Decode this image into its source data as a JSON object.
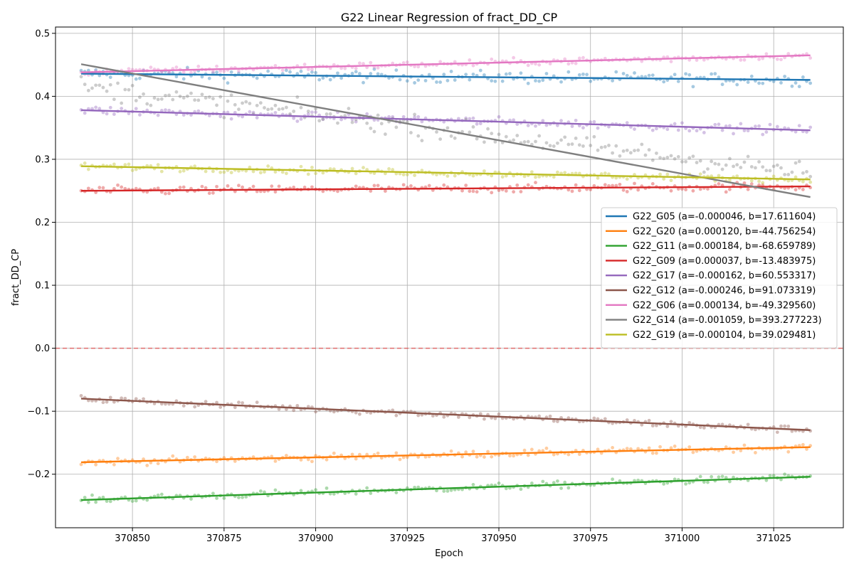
{
  "chart_data": {
    "type": "scatter",
    "title": "G22 Linear Regression of fract_DD_CP",
    "xlabel": "Epoch",
    "ylabel": "fract_DD_CP",
    "xlim": [
      370829,
      371044
    ],
    "ylim": [
      -0.285,
      0.51
    ],
    "xticks": [
      370850,
      370875,
      370900,
      370925,
      370950,
      370975,
      371000,
      371025
    ],
    "yticks": [
      -0.2,
      -0.1,
      0.0,
      0.1,
      0.2,
      0.3,
      0.4,
      0.5
    ],
    "grid": true,
    "legend_position": "center-right",
    "reference_line": {
      "y": 0.0,
      "color": "#e06060",
      "style": "dashed"
    },
    "fit_range": [
      370836,
      371035
    ],
    "series": [
      {
        "name": "G22_G05 (a=-0.000046, b=17.611604)",
        "a": -4.6e-05,
        "y_start": 0.436,
        "y_end": 0.426,
        "color": "#1f77b4",
        "noise": 0.007
      },
      {
        "name": "G22_G20 (a=0.000120, b=-44.756254)",
        "a": 0.00012,
        "y_start": -0.181,
        "y_end": -0.157,
        "color": "#ff7f0e",
        "noise": 0.004
      },
      {
        "name": "G22_G11 (a=0.000184, b=-68.659789)",
        "a": 0.000184,
        "y_start": -0.241,
        "y_end": -0.204,
        "color": "#2ca02c",
        "noise": 0.004
      },
      {
        "name": "G22_G09 (a=0.000037, b=-13.483975)",
        "a": 3.7e-05,
        "y_start": 0.25,
        "y_end": 0.257,
        "color": "#d62728",
        "noise": 0.005
      },
      {
        "name": "G22_G17 (a=-0.000162, b=60.553317)",
        "a": -0.000162,
        "y_start": 0.378,
        "y_end": 0.346,
        "color": "#9467bd",
        "noise": 0.005
      },
      {
        "name": "G22_G12 (a=-0.000246, b=91.073319)",
        "a": -0.000246,
        "y_start": -0.08,
        "y_end": -0.13,
        "color": "#8c564b",
        "noise": 0.004
      },
      {
        "name": "G22_G06 (a=0.000134, b=-49.329560)",
        "a": 0.000134,
        "y_start": 0.438,
        "y_end": 0.465,
        "color": "#e377c2",
        "noise": 0.004
      },
      {
        "name": "G22_G14 (a=-0.001059, b=393.277223)",
        "a": -0.001059,
        "y_start": 0.451,
        "y_end": 0.24,
        "color": "#7f7f7f",
        "noise": 0.012,
        "scatter_trend": [
          0.415,
          0.278
        ]
      },
      {
        "name": "G22_G19 (a=-0.000104, b=39.029481)",
        "a": -0.000104,
        "y_start": 0.289,
        "y_end": 0.268,
        "color": "#bcbd22",
        "noise": 0.004
      }
    ]
  }
}
